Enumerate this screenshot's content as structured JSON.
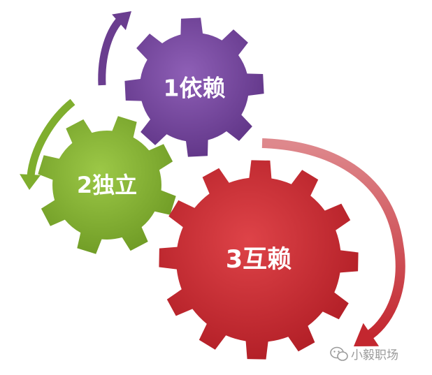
{
  "diagram": {
    "gears": [
      {
        "id": "purple",
        "label": "1依赖",
        "color": "#6f3f97",
        "color_light": "#8b5bb3"
      },
      {
        "id": "green",
        "label": "2独立",
        "color": "#7fae2e",
        "color_light": "#99c443"
      },
      {
        "id": "red",
        "label": "3互赖",
        "color": "#c4262e",
        "color_light": "#dc4045"
      }
    ],
    "arrows": [
      {
        "id": "purple-arrow",
        "color": "#6a3d8f"
      },
      {
        "id": "green-arrow",
        "color": "#7fae2e"
      },
      {
        "id": "red-arrow",
        "color": "#c3272f"
      }
    ]
  },
  "watermark": {
    "text": "小毅职场",
    "icon": "wechat-bubble-icon"
  }
}
